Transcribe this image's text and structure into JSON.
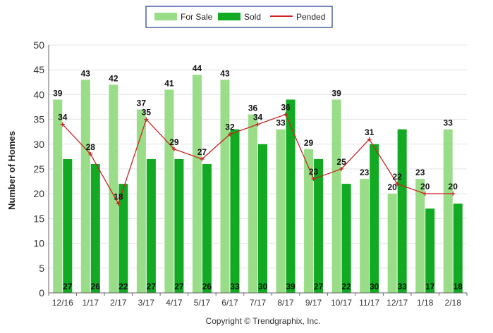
{
  "chart_data": {
    "type": "bar",
    "categories": [
      "12/16",
      "1/17",
      "2/17",
      "3/17",
      "4/17",
      "5/17",
      "6/17",
      "7/17",
      "8/17",
      "9/17",
      "10/17",
      "11/17",
      "12/17",
      "1/18",
      "2/18"
    ],
    "series": [
      {
        "name": "For Sale",
        "kind": "bar",
        "color": "#99dd88",
        "values": [
          39,
          43,
          42,
          37,
          41,
          44,
          43,
          36,
          33,
          29,
          39,
          23,
          20,
          23,
          33
        ]
      },
      {
        "name": "Sold",
        "kind": "bar",
        "color": "#11aa22",
        "values": [
          27,
          26,
          22,
          27,
          27,
          26,
          33,
          30,
          39,
          27,
          22,
          30,
          33,
          17,
          18
        ]
      },
      {
        "name": "Pended",
        "kind": "line",
        "color": "#cc2222",
        "values": [
          34,
          28,
          18,
          35,
          29,
          27,
          32,
          34,
          36,
          23,
          25,
          31,
          22,
          20,
          20
        ]
      }
    ],
    "ylabel": "Number of Homes",
    "ylim": [
      0,
      50
    ],
    "yticks": [
      0,
      5,
      10,
      15,
      20,
      25,
      30,
      35,
      40,
      45,
      50
    ],
    "grid": true,
    "legend": "top-center"
  },
  "credit": "Copyright © Trendgraphix, Inc."
}
